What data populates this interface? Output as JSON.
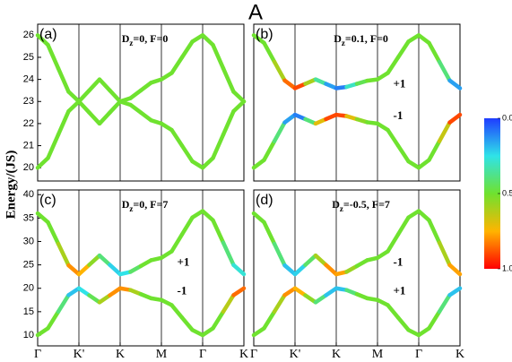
{
  "figure": {
    "title": "A",
    "ylabel": "Energy/(JS)",
    "colorbar": {
      "lim": [
        0,
        1
      ],
      "ticks": [
        {
          "value": 0,
          "label": "0.0"
        },
        {
          "value": 0.5,
          "label": "0.5"
        },
        {
          "value": 1,
          "label": "1.0"
        }
      ],
      "colormap": [
        "#1f3cff",
        "#2fe3e8",
        "#6fe22f",
        "#ffb400",
        "#ff0000"
      ]
    }
  },
  "chart_data": [
    {
      "type": "line",
      "panel": "(a)",
      "params": [
        "D",
        "z",
        "=0, F=0"
      ],
      "xlim": [
        0,
        5
      ],
      "ylim": [
        19.4,
        26.5
      ],
      "yticks": [
        20,
        21,
        22,
        23,
        24,
        25,
        26
      ],
      "vlines": [
        1,
        2,
        3,
        4
      ],
      "x": [
        0,
        0.25,
        0.5,
        0.75,
        1,
        1.25,
        1.5,
        1.75,
        2,
        2.25,
        2.5,
        2.75,
        3,
        3.25,
        3.5,
        3.75,
        4,
        4.25,
        4.5,
        4.75,
        5
      ],
      "series": [
        {
          "values": [
            26,
            25.56,
            24.5,
            23.44,
            23,
            23.5,
            24,
            23.5,
            23,
            23.15,
            23.5,
            23.85,
            24,
            24.29,
            25,
            25.71,
            26,
            25.56,
            24.5,
            23.44,
            23
          ],
          "weights": [
            0.5,
            0.5,
            0.5,
            0.5,
            0.5,
            0.5,
            0.5,
            0.5,
            0.5,
            0.5,
            0.5,
            0.5,
            0.5,
            0.5,
            0.5,
            0.5,
            0.5,
            0.5,
            0.5,
            0.5,
            0.5
          ]
        },
        {
          "values": [
            20,
            20.44,
            21.5,
            22.56,
            23,
            22.5,
            22,
            22.5,
            23,
            22.85,
            22.5,
            22.15,
            22,
            21.71,
            21,
            20.29,
            20,
            20.44,
            21.5,
            22.56,
            23
          ],
          "weights": [
            0.5,
            0.5,
            0.5,
            0.5,
            0.5,
            0.5,
            0.5,
            0.5,
            0.5,
            0.5,
            0.5,
            0.5,
            0.5,
            0.5,
            0.5,
            0.5,
            0.5,
            0.5,
            0.5,
            0.5,
            0.5
          ]
        }
      ]
    },
    {
      "type": "line",
      "panel": "(b)",
      "params": [
        "D",
        "z",
        "=0.1, F=0"
      ],
      "xlim": [
        0,
        5
      ],
      "ylim": [
        19.4,
        26.5
      ],
      "vlines": [
        1,
        2,
        3,
        4
      ],
      "x": [
        0,
        0.25,
        0.5,
        0.75,
        1,
        1.25,
        1.5,
        1.75,
        2,
        2.25,
        2.5,
        2.75,
        3,
        3.25,
        3.5,
        3.75,
        4,
        4.25,
        4.5,
        4.75,
        5
      ],
      "series": [
        {
          "label": "+1",
          "values": [
            26,
            25.65,
            24.8,
            23.95,
            23.6,
            23.8,
            24,
            23.8,
            23.6,
            23.66,
            23.8,
            23.94,
            24,
            24.29,
            25,
            25.71,
            26,
            25.65,
            24.8,
            23.95,
            23.6
          ],
          "weights": [
            0.5,
            0.5,
            0.5,
            0.7,
            1,
            0.8,
            0.4,
            0.3,
            0,
            0.2,
            0.4,
            0.5,
            0.5,
            0.5,
            0.5,
            0.5,
            0.5,
            0.5,
            0.5,
            0.3,
            0
          ]
        },
        {
          "label": "-1",
          "values": [
            20,
            20.35,
            21.2,
            22.05,
            22.4,
            22.2,
            22,
            22.2,
            22.4,
            22.34,
            22.2,
            22.06,
            22,
            21.71,
            21,
            20.29,
            20,
            20.35,
            21.2,
            22.05,
            22.4
          ],
          "weights": [
            0.5,
            0.5,
            0.5,
            0.3,
            0,
            0.2,
            0.6,
            0.8,
            1,
            0.8,
            0.6,
            0.5,
            0.5,
            0.5,
            0.5,
            0.5,
            0.5,
            0.5,
            0.5,
            0.8,
            1
          ]
        }
      ]
    },
    {
      "type": "line",
      "panel": "(c)",
      "params": [
        "D",
        "z",
        "=0, F=7"
      ],
      "xlim": [
        0,
        5
      ],
      "ylim": [
        7.7,
        41
      ],
      "yticks": [
        10,
        15,
        20,
        25,
        30,
        35,
        40
      ],
      "vlines": [
        1,
        2,
        3,
        4
      ],
      "xticks": [
        {
          "value": 0,
          "label": "Γ"
        },
        {
          "value": 1,
          "label": "K'"
        },
        {
          "value": 2,
          "label": "K"
        },
        {
          "value": 3,
          "label": "M"
        },
        {
          "value": 4,
          "label": "Γ"
        },
        {
          "value": 5,
          "label": "K"
        }
      ],
      "x": [
        0,
        0.25,
        0.5,
        0.75,
        1,
        1.25,
        1.5,
        1.75,
        2,
        2.25,
        2.5,
        2.75,
        3,
        3.25,
        3.5,
        3.75,
        4,
        4.25,
        4.5,
        4.75,
        5
      ],
      "series": [
        {
          "label": "+1",
          "values": [
            36,
            34.1,
            29.5,
            24.9,
            23,
            25,
            27,
            25,
            23,
            23.51,
            24.75,
            25.99,
            26.5,
            27.89,
            31.5,
            35.11,
            36.5,
            34.53,
            29.75,
            24.97,
            23
          ],
          "weights": [
            0.5,
            0.5,
            0.5,
            0.7,
            0.9,
            0.6,
            0.5,
            0.3,
            0.15,
            0.35,
            0.5,
            0.5,
            0.5,
            0.5,
            0.5,
            0.5,
            0.5,
            0.5,
            0.5,
            0.3,
            0.25
          ]
        },
        {
          "label": "-1",
          "values": [
            10,
            11.46,
            15,
            18.54,
            20,
            18.5,
            17,
            18.5,
            20,
            19.63,
            18.75,
            17.87,
            17.5,
            16.4,
            13.75,
            11.1,
            10,
            11.46,
            15,
            18.54,
            20
          ],
          "weights": [
            0.5,
            0.5,
            0.5,
            0.3,
            0.1,
            0.4,
            0.5,
            0.7,
            0.9,
            0.7,
            0.5,
            0.5,
            0.5,
            0.5,
            0.5,
            0.5,
            0.5,
            0.5,
            0.5,
            0.75,
            0.95
          ]
        }
      ]
    },
    {
      "type": "line",
      "panel": "(d)",
      "params": [
        "D",
        "z",
        "=-0.5, F=7"
      ],
      "xlim": [
        0,
        5
      ],
      "ylim": [
        7.7,
        41
      ],
      "vlines": [
        1,
        2,
        3,
        4
      ],
      "xticks": [
        {
          "value": 0,
          "label": "Γ"
        },
        {
          "value": 1,
          "label": "K'"
        },
        {
          "value": 2,
          "label": "K"
        },
        {
          "value": 3,
          "label": "M"
        },
        {
          "value": 4,
          "label": "Γ"
        },
        {
          "value": 5,
          "label": "K"
        }
      ],
      "x": [
        0,
        0.25,
        0.5,
        0.75,
        1,
        1.25,
        1.5,
        1.75,
        2,
        2.25,
        2.5,
        2.75,
        3,
        3.25,
        3.5,
        3.75,
        4,
        4.25,
        4.5,
        4.75,
        5
      ],
      "series": [
        {
          "label": "-1",
          "values": [
            36,
            34.1,
            29.5,
            24.9,
            23,
            25,
            27,
            25,
            23,
            23.51,
            24.75,
            25.99,
            26.5,
            27.89,
            31.5,
            35.11,
            36.5,
            34.53,
            29.75,
            24.97,
            23
          ],
          "weights": [
            0.5,
            0.5,
            0.5,
            0.3,
            0.1,
            0.35,
            0.5,
            0.7,
            0.9,
            0.65,
            0.5,
            0.5,
            0.5,
            0.5,
            0.5,
            0.5,
            0.5,
            0.5,
            0.5,
            0.7,
            0.85
          ]
        },
        {
          "label": "+1",
          "values": [
            10,
            11.46,
            15,
            18.54,
            20,
            18.5,
            17,
            18.5,
            20,
            19.63,
            18.75,
            17.87,
            17.5,
            16.4,
            13.75,
            11.1,
            10,
            11.46,
            15,
            18.54,
            20
          ],
          "weights": [
            0.5,
            0.5,
            0.5,
            0.7,
            0.9,
            0.6,
            0.5,
            0.3,
            0.1,
            0.3,
            0.5,
            0.5,
            0.5,
            0.5,
            0.5,
            0.5,
            0.5,
            0.5,
            0.5,
            0.3,
            0.1
          ]
        }
      ]
    }
  ]
}
